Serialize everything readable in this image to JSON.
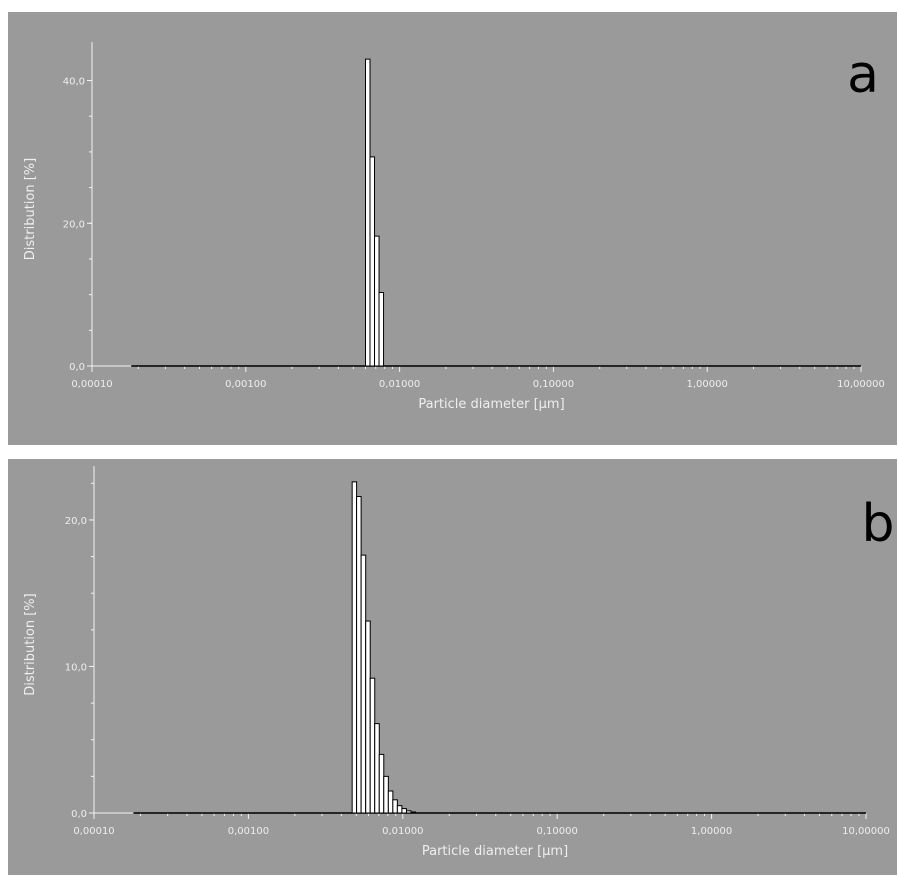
{
  "chart_data": [
    {
      "type": "bar",
      "panel_label": "a",
      "xlabel": "Particle diameter [µm]",
      "ylabel": "Distribution [%]",
      "x_scale": "log",
      "xlim": [
        0.0001,
        10
      ],
      "x_ticks": [
        "0,00010",
        "0,00100",
        "0,01000",
        "0,10000",
        "1,00000",
        "10,00000"
      ],
      "ylim": [
        0,
        44
      ],
      "y_ticks": [
        "0,0",
        "20,0",
        "40,0"
      ],
      "grid": false,
      "legend": "none",
      "curve_range": [
        0.00018,
        10
      ],
      "bins": [
        {
          "x": 0.006,
          "y": 43.0
        },
        {
          "x": 0.00642,
          "y": 29.3
        },
        {
          "x": 0.00687,
          "y": 18.2
        },
        {
          "x": 0.00735,
          "y": 10.3
        }
      ]
    },
    {
      "type": "bar",
      "panel_label": "b",
      "xlabel": "Particle diameter [µm]",
      "ylabel": "Distribution [%]",
      "x_scale": "log",
      "xlim": [
        0.0001,
        10
      ],
      "x_ticks": [
        "0,00010",
        "0,00100",
        "0,01000",
        "0,10000",
        "1,00000",
        "10,00000"
      ],
      "ylim": [
        0,
        23
      ],
      "y_ticks": [
        "0,0",
        "10,0",
        "20,0"
      ],
      "grid": false,
      "legend": "none",
      "curve_range": [
        0.00018,
        10
      ],
      "bins": [
        {
          "x": 0.0047,
          "y": 22.6
        },
        {
          "x": 0.00502,
          "y": 21.6
        },
        {
          "x": 0.00537,
          "y": 17.6
        },
        {
          "x": 0.00575,
          "y": 13.1
        },
        {
          "x": 0.00615,
          "y": 9.2
        },
        {
          "x": 0.00658,
          "y": 6.1
        },
        {
          "x": 0.00704,
          "y": 4.0
        },
        {
          "x": 0.00753,
          "y": 2.5
        },
        {
          "x": 0.00806,
          "y": 1.5
        },
        {
          "x": 0.00862,
          "y": 0.9
        },
        {
          "x": 0.00922,
          "y": 0.5
        },
        {
          "x": 0.00987,
          "y": 0.3
        },
        {
          "x": 0.01056,
          "y": 0.15
        },
        {
          "x": 0.0113,
          "y": 0.07
        }
      ]
    }
  ]
}
